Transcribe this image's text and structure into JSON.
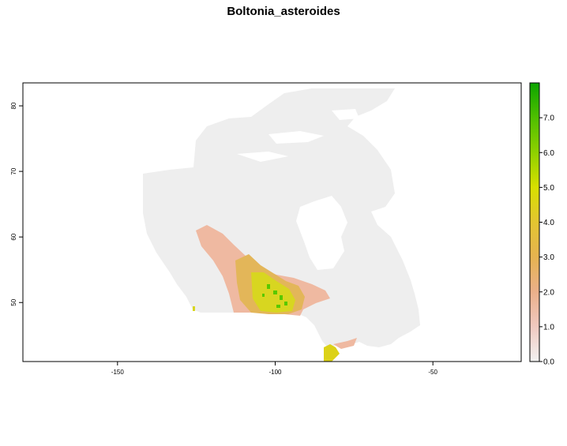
{
  "title": "Boltonia_asteroides",
  "x_ticks": [
    {
      "value": -150,
      "label": "-150"
    },
    {
      "value": -100,
      "label": "-100"
    },
    {
      "value": -50,
      "label": "-50"
    }
  ],
  "y_ticks": [
    {
      "value": 50,
      "label": "50"
    },
    {
      "value": 60,
      "label": "60"
    },
    {
      "value": 70,
      "label": "70"
    },
    {
      "value": 80,
      "label": "80"
    }
  ],
  "x_range": [
    -180,
    -22
  ],
  "y_range": [
    41,
    83.5
  ],
  "legend": {
    "range": [
      0,
      8
    ],
    "ticks": [
      {
        "value": 0,
        "label": "0.0"
      },
      {
        "value": 1,
        "label": "1.0"
      },
      {
        "value": 2,
        "label": "2.0"
      },
      {
        "value": 3,
        "label": "3.0"
      },
      {
        "value": 4,
        "label": "4.0"
      },
      {
        "value": 5,
        "label": "5.0"
      },
      {
        "value": 6,
        "label": "6.0"
      },
      {
        "value": 7,
        "label": "7.0"
      }
    ],
    "colors": [
      "#f2f2f2",
      "#f0c9c0",
      "#ebb08a",
      "#e6b350",
      "#e3c531",
      "#d8e000",
      "#8fd100",
      "#4fbf00",
      "#0ca400"
    ]
  },
  "colors": {
    "background": "#f0f0f0",
    "low": "#edb298",
    "mid": "#e6b845",
    "high": "#d9dd10",
    "peak": "#5ccd00"
  }
}
